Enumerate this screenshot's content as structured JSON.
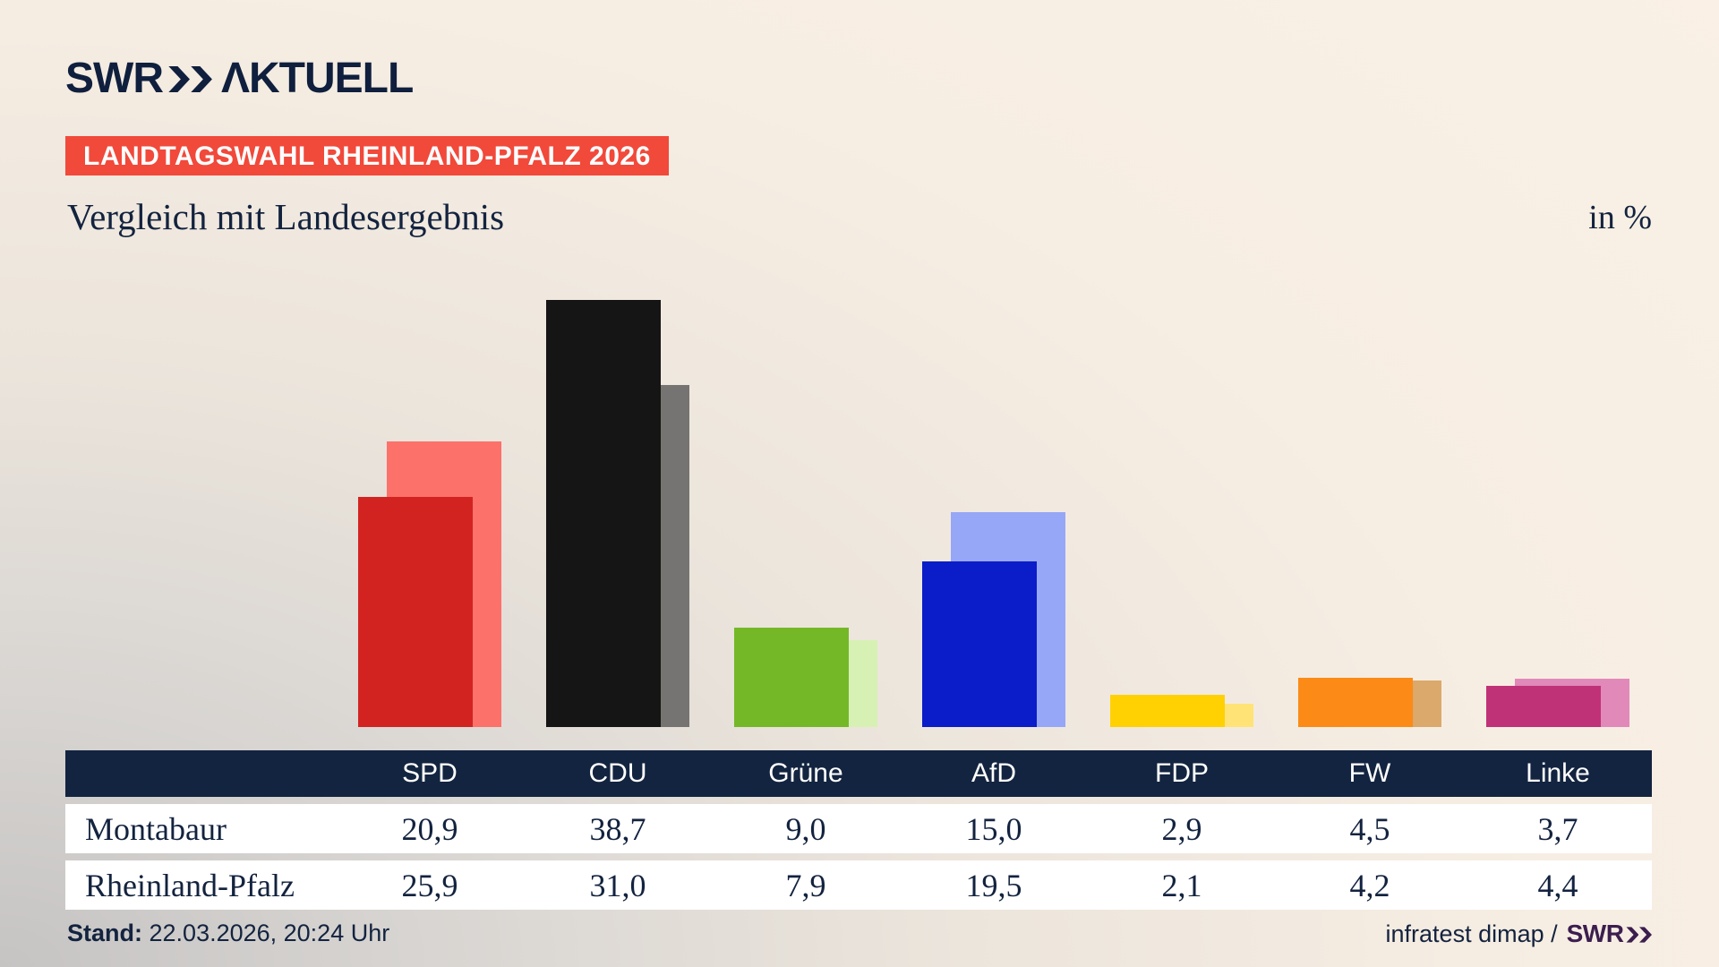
{
  "header": {
    "logo": {
      "swr": "SWR",
      "aktuell": "ΛKTUELL"
    },
    "banner": "LANDTAGSWAHL RHEINLAND-PFALZ 2026",
    "title": "Vergleich mit Landesergebnis",
    "unit_label": "in %"
  },
  "chart_data": {
    "type": "bar",
    "title": "Vergleich mit Landesergebnis",
    "unit": "%",
    "grid": false,
    "legend_position": "table-below",
    "categories": [
      "SPD",
      "CDU",
      "Grüne",
      "AfD",
      "FDP",
      "FW",
      "Linke"
    ],
    "series": [
      {
        "name": "Montabaur",
        "role": "front",
        "values": [
          20.9,
          38.7,
          9.0,
          15.0,
          2.9,
          4.5,
          3.7
        ],
        "colors": [
          "#d22321",
          "#151515",
          "#74b827",
          "#0a1dc8",
          "#ffd103",
          "#fb8b16",
          "#c03277"
        ]
      },
      {
        "name": "Rheinland-Pfalz",
        "role": "back",
        "values": [
          25.9,
          31.0,
          7.9,
          19.5,
          2.1,
          4.2,
          4.4
        ],
        "colors": [
          "#fc716a",
          "#757472",
          "#d6f1b3",
          "#97a7f7",
          "#ffe377",
          "#dba96c",
          "#e189b8"
        ]
      }
    ]
  },
  "table": {
    "columns": [
      "SPD",
      "CDU",
      "Grüne",
      "AfD",
      "FDP",
      "FW",
      "Linke"
    ],
    "rows": [
      {
        "label": "Montabaur",
        "values": [
          "20,9",
          "38,7",
          "9,0",
          "15,0",
          "2,9",
          "4,5",
          "3,7"
        ]
      },
      {
        "label": "Rheinland-Pfalz",
        "values": [
          "25,9",
          "31,0",
          "7,9",
          "19,5",
          "2,1",
          "4,2",
          "4,4"
        ]
      }
    ]
  },
  "footer": {
    "stand_label": "Stand:",
    "stand_value": "22.03.2026, 20:24 Uhr",
    "source": "infratest dimap /",
    "source_logo": "SWR"
  },
  "colors": {
    "text_navy": "#13233f",
    "banner_red": "#f1493a",
    "table_header_navy": "#132440",
    "swr_logo_purple": "#3b1e4e"
  }
}
